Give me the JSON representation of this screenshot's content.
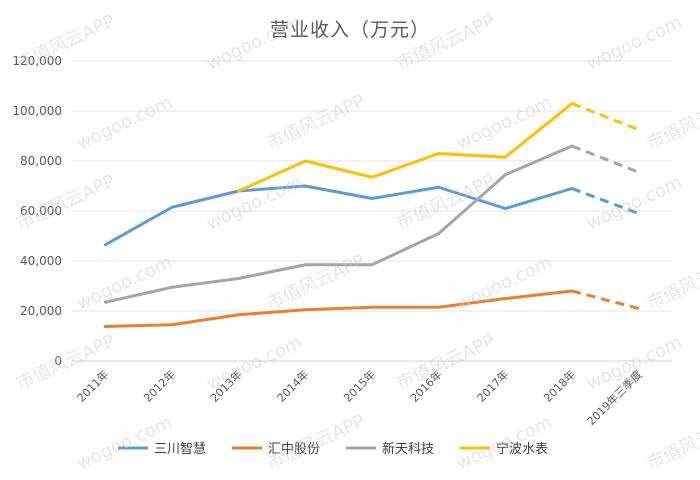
{
  "chart_data": {
    "type": "line",
    "title": "营业收入（万元）",
    "xlabel": "",
    "ylabel": "",
    "ylim": [
      0,
      120000
    ],
    "yticks": [
      0,
      20000,
      40000,
      60000,
      80000,
      100000,
      120000
    ],
    "ytick_labels": [
      "0",
      "20,000",
      "40,000",
      "60,000",
      "80,000",
      "100,000",
      "120,000"
    ],
    "categories": [
      "2011年",
      "2012年",
      "2013年",
      "2014年",
      "2015年",
      "2016年",
      "2017年",
      "2018年",
      "2019年三季度"
    ],
    "dashed_from_index": 7,
    "grid": true,
    "legend_position": "bottom",
    "series": [
      {
        "name": "三川智慧",
        "color": "#5b9bd5",
        "values": [
          46500,
          61500,
          68000,
          70000,
          65000,
          69500,
          61000,
          69000,
          59000
        ]
      },
      {
        "name": "汇中股份",
        "color": "#ed7d31",
        "values": [
          13800,
          14500,
          18500,
          20500,
          21500,
          21500,
          25000,
          28000,
          21000
        ]
      },
      {
        "name": "新天科技",
        "color": "#a5a5a5",
        "values": [
          23500,
          29500,
          33000,
          38500,
          38500,
          51000,
          74500,
          86000,
          75500
        ]
      },
      {
        "name": "宁波水表",
        "color": "#ffc000",
        "values": [
          null,
          null,
          68000,
          80000,
          73500,
          83000,
          81500,
          103000,
          92500
        ]
      }
    ]
  },
  "watermark": {
    "text_cn": "市值风云APP",
    "text_en": "wogoo.com"
  }
}
